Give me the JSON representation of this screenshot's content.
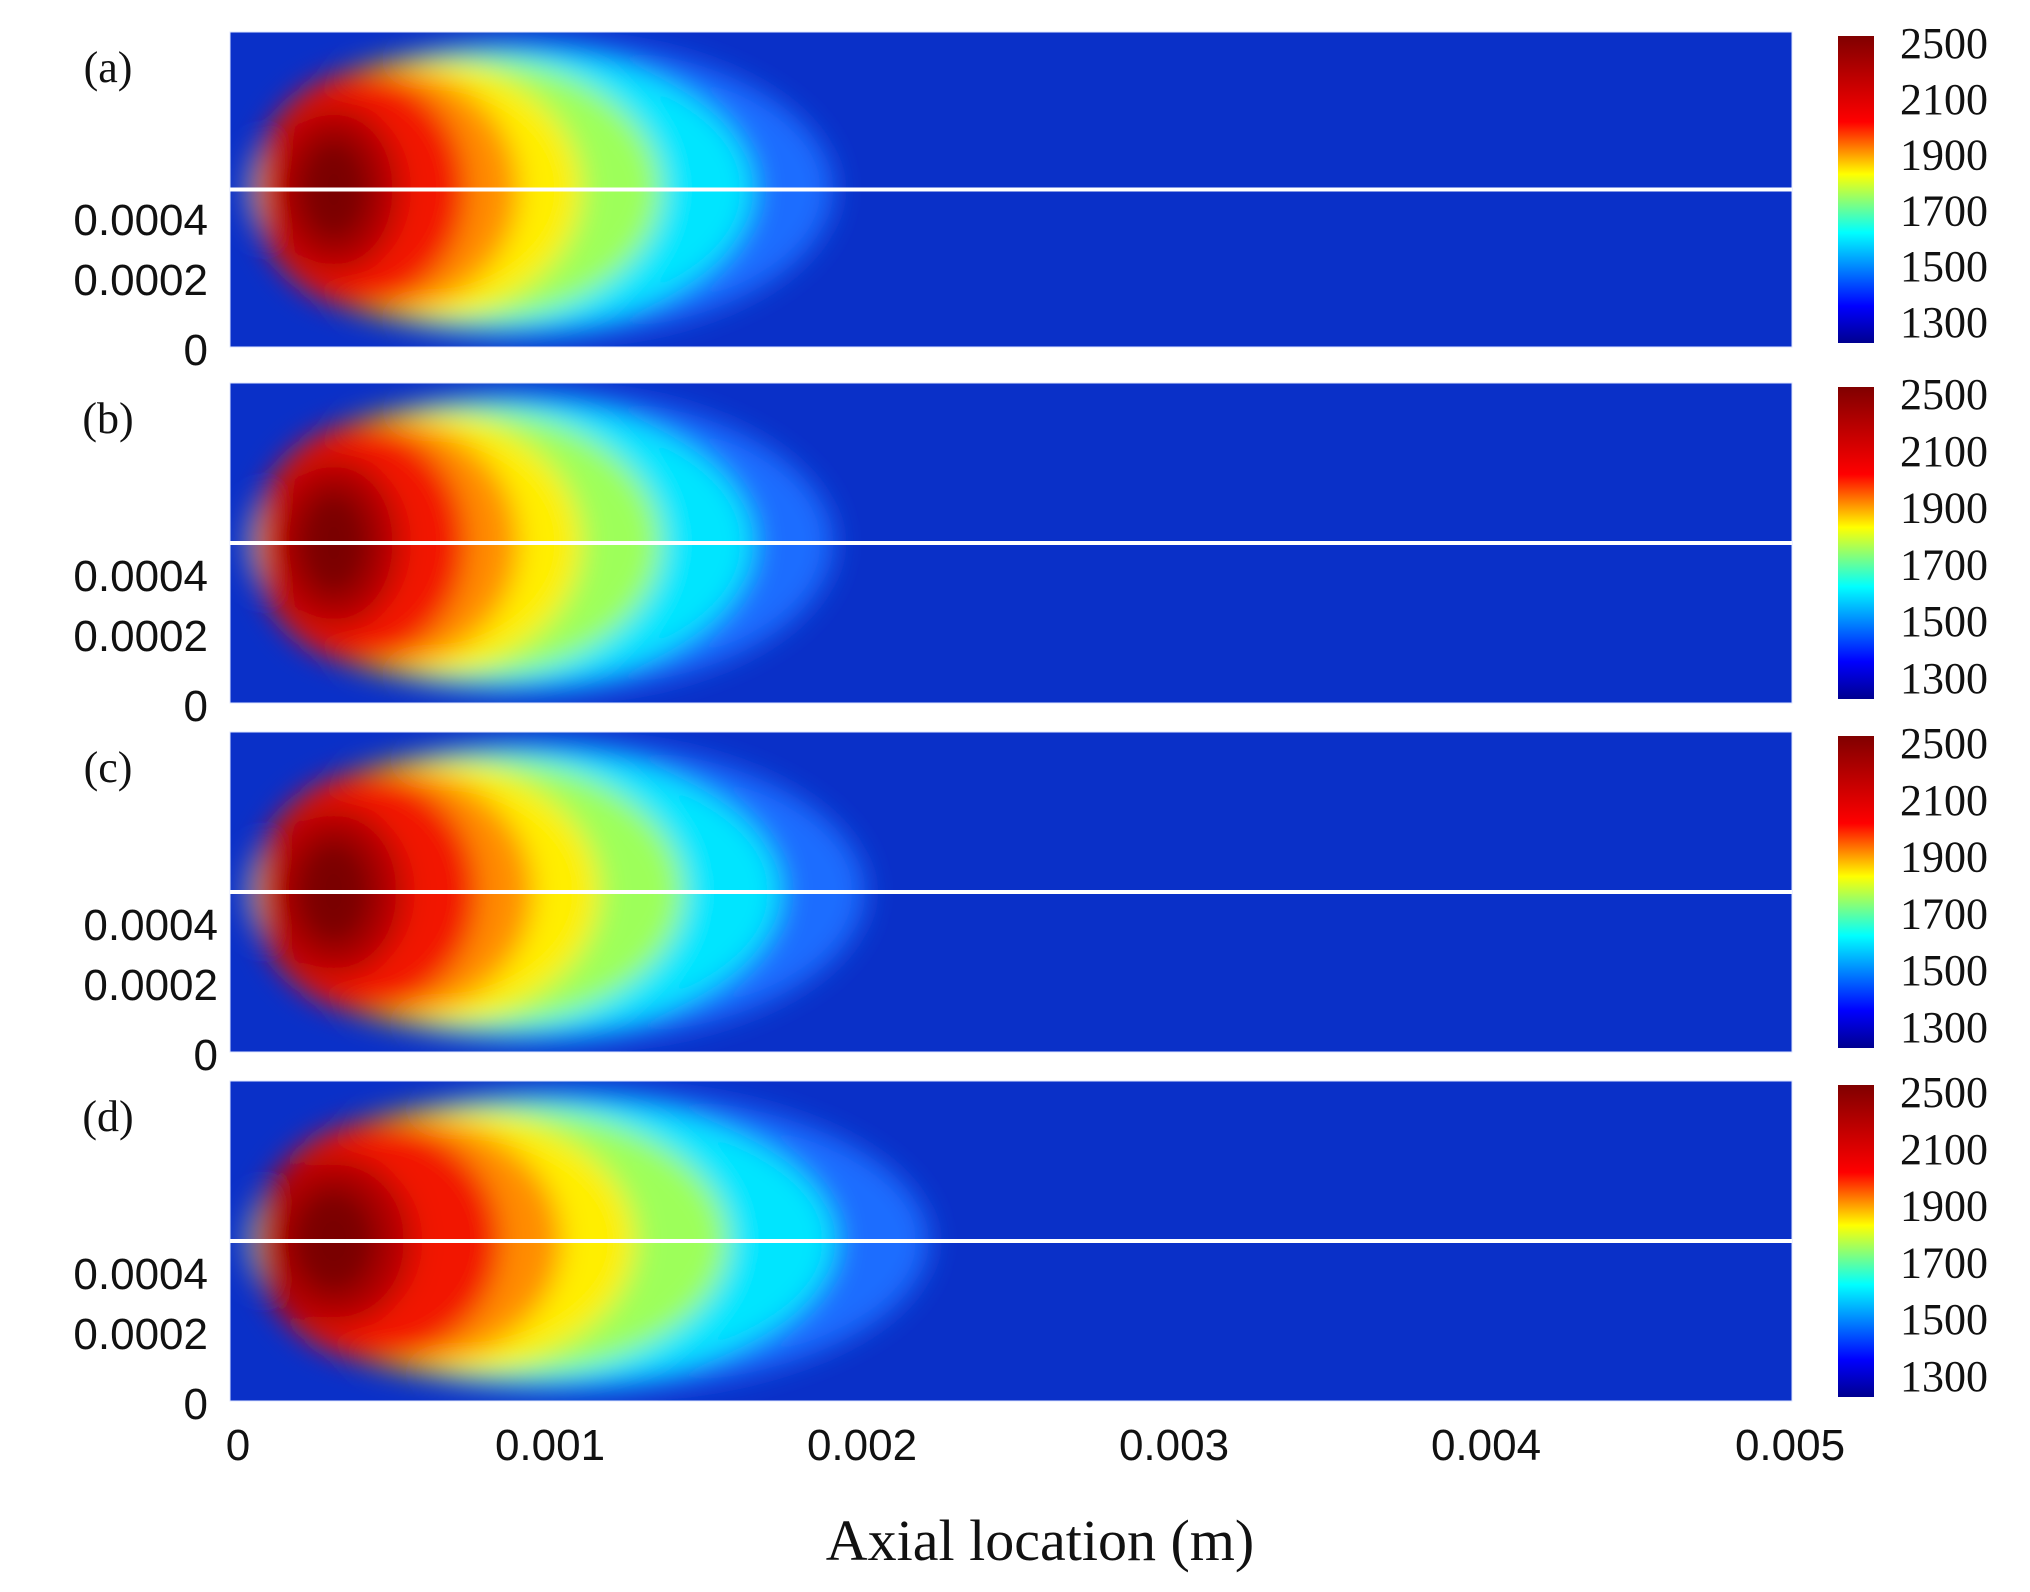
{
  "chart_data": {
    "type": "heatmap",
    "colormap": "jet",
    "xlabel": "Axial location (m)",
    "x_ticks": [
      "0",
      "0.001",
      "0.002",
      "0.003",
      "0.004",
      "0.005"
    ],
    "xlim": [
      0,
      0.005
    ],
    "y_ticks": [
      "0",
      "0.0002",
      "0.0004"
    ],
    "colorbar_ticks": [
      "1300",
      "1500",
      "1700",
      "1900",
      "2100",
      "2500"
    ],
    "colorbar_range": [
      1300,
      2500
    ],
    "panels": [
      {
        "label": "(a)",
        "peak_value": 2500,
        "peak_x": 0.0003,
        "extent_x": 0.0018,
        "background_value": 1300
      },
      {
        "label": "(b)",
        "peak_value": 2500,
        "peak_x": 0.0003,
        "extent_x": 0.0018,
        "background_value": 1300
      },
      {
        "label": "(c)",
        "peak_value": 2500,
        "peak_x": 0.0003,
        "extent_x": 0.0019,
        "background_value": 1300
      },
      {
        "label": "(d)",
        "peak_value": 2500,
        "peak_x": 0.0003,
        "extent_x": 0.0021,
        "background_value": 1300
      }
    ]
  },
  "colors": {
    "background_field": "#0a30c8",
    "centerline": "#ffffff",
    "jet_stops": [
      "#00008f",
      "#0000ff",
      "#00ffff",
      "#ffff00",
      "#ff0000",
      "#800000"
    ]
  }
}
